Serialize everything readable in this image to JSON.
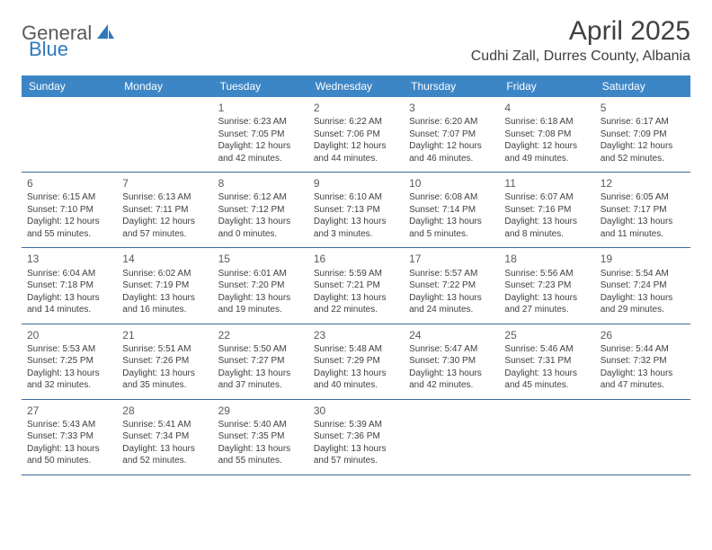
{
  "brand": {
    "part1": "General",
    "part2": "Blue"
  },
  "title": "April 2025",
  "location": "Cudhi Zall, Durres County, Albania",
  "colors": {
    "header_bg": "#3d86c6",
    "header_text": "#ffffff",
    "row_border": "#3d6a97",
    "body_text": "#404040",
    "brand_gray": "#5a5a5a",
    "brand_blue": "#2f78bd"
  },
  "day_headers": [
    "Sunday",
    "Monday",
    "Tuesday",
    "Wednesday",
    "Thursday",
    "Friday",
    "Saturday"
  ],
  "weeks": [
    [
      null,
      null,
      {
        "n": "1",
        "sr": "Sunrise: 6:23 AM",
        "ss": "Sunset: 7:05 PM",
        "d1": "Daylight: 12 hours",
        "d2": "and 42 minutes."
      },
      {
        "n": "2",
        "sr": "Sunrise: 6:22 AM",
        "ss": "Sunset: 7:06 PM",
        "d1": "Daylight: 12 hours",
        "d2": "and 44 minutes."
      },
      {
        "n": "3",
        "sr": "Sunrise: 6:20 AM",
        "ss": "Sunset: 7:07 PM",
        "d1": "Daylight: 12 hours",
        "d2": "and 46 minutes."
      },
      {
        "n": "4",
        "sr": "Sunrise: 6:18 AM",
        "ss": "Sunset: 7:08 PM",
        "d1": "Daylight: 12 hours",
        "d2": "and 49 minutes."
      },
      {
        "n": "5",
        "sr": "Sunrise: 6:17 AM",
        "ss": "Sunset: 7:09 PM",
        "d1": "Daylight: 12 hours",
        "d2": "and 52 minutes."
      }
    ],
    [
      {
        "n": "6",
        "sr": "Sunrise: 6:15 AM",
        "ss": "Sunset: 7:10 PM",
        "d1": "Daylight: 12 hours",
        "d2": "and 55 minutes."
      },
      {
        "n": "7",
        "sr": "Sunrise: 6:13 AM",
        "ss": "Sunset: 7:11 PM",
        "d1": "Daylight: 12 hours",
        "d2": "and 57 minutes."
      },
      {
        "n": "8",
        "sr": "Sunrise: 6:12 AM",
        "ss": "Sunset: 7:12 PM",
        "d1": "Daylight: 13 hours",
        "d2": "and 0 minutes."
      },
      {
        "n": "9",
        "sr": "Sunrise: 6:10 AM",
        "ss": "Sunset: 7:13 PM",
        "d1": "Daylight: 13 hours",
        "d2": "and 3 minutes."
      },
      {
        "n": "10",
        "sr": "Sunrise: 6:08 AM",
        "ss": "Sunset: 7:14 PM",
        "d1": "Daylight: 13 hours",
        "d2": "and 5 minutes."
      },
      {
        "n": "11",
        "sr": "Sunrise: 6:07 AM",
        "ss": "Sunset: 7:16 PM",
        "d1": "Daylight: 13 hours",
        "d2": "and 8 minutes."
      },
      {
        "n": "12",
        "sr": "Sunrise: 6:05 AM",
        "ss": "Sunset: 7:17 PM",
        "d1": "Daylight: 13 hours",
        "d2": "and 11 minutes."
      }
    ],
    [
      {
        "n": "13",
        "sr": "Sunrise: 6:04 AM",
        "ss": "Sunset: 7:18 PM",
        "d1": "Daylight: 13 hours",
        "d2": "and 14 minutes."
      },
      {
        "n": "14",
        "sr": "Sunrise: 6:02 AM",
        "ss": "Sunset: 7:19 PM",
        "d1": "Daylight: 13 hours",
        "d2": "and 16 minutes."
      },
      {
        "n": "15",
        "sr": "Sunrise: 6:01 AM",
        "ss": "Sunset: 7:20 PM",
        "d1": "Daylight: 13 hours",
        "d2": "and 19 minutes."
      },
      {
        "n": "16",
        "sr": "Sunrise: 5:59 AM",
        "ss": "Sunset: 7:21 PM",
        "d1": "Daylight: 13 hours",
        "d2": "and 22 minutes."
      },
      {
        "n": "17",
        "sr": "Sunrise: 5:57 AM",
        "ss": "Sunset: 7:22 PM",
        "d1": "Daylight: 13 hours",
        "d2": "and 24 minutes."
      },
      {
        "n": "18",
        "sr": "Sunrise: 5:56 AM",
        "ss": "Sunset: 7:23 PM",
        "d1": "Daylight: 13 hours",
        "d2": "and 27 minutes."
      },
      {
        "n": "19",
        "sr": "Sunrise: 5:54 AM",
        "ss": "Sunset: 7:24 PM",
        "d1": "Daylight: 13 hours",
        "d2": "and 29 minutes."
      }
    ],
    [
      {
        "n": "20",
        "sr": "Sunrise: 5:53 AM",
        "ss": "Sunset: 7:25 PM",
        "d1": "Daylight: 13 hours",
        "d2": "and 32 minutes."
      },
      {
        "n": "21",
        "sr": "Sunrise: 5:51 AM",
        "ss": "Sunset: 7:26 PM",
        "d1": "Daylight: 13 hours",
        "d2": "and 35 minutes."
      },
      {
        "n": "22",
        "sr": "Sunrise: 5:50 AM",
        "ss": "Sunset: 7:27 PM",
        "d1": "Daylight: 13 hours",
        "d2": "and 37 minutes."
      },
      {
        "n": "23",
        "sr": "Sunrise: 5:48 AM",
        "ss": "Sunset: 7:29 PM",
        "d1": "Daylight: 13 hours",
        "d2": "and 40 minutes."
      },
      {
        "n": "24",
        "sr": "Sunrise: 5:47 AM",
        "ss": "Sunset: 7:30 PM",
        "d1": "Daylight: 13 hours",
        "d2": "and 42 minutes."
      },
      {
        "n": "25",
        "sr": "Sunrise: 5:46 AM",
        "ss": "Sunset: 7:31 PM",
        "d1": "Daylight: 13 hours",
        "d2": "and 45 minutes."
      },
      {
        "n": "26",
        "sr": "Sunrise: 5:44 AM",
        "ss": "Sunset: 7:32 PM",
        "d1": "Daylight: 13 hours",
        "d2": "and 47 minutes."
      }
    ],
    [
      {
        "n": "27",
        "sr": "Sunrise: 5:43 AM",
        "ss": "Sunset: 7:33 PM",
        "d1": "Daylight: 13 hours",
        "d2": "and 50 minutes."
      },
      {
        "n": "28",
        "sr": "Sunrise: 5:41 AM",
        "ss": "Sunset: 7:34 PM",
        "d1": "Daylight: 13 hours",
        "d2": "and 52 minutes."
      },
      {
        "n": "29",
        "sr": "Sunrise: 5:40 AM",
        "ss": "Sunset: 7:35 PM",
        "d1": "Daylight: 13 hours",
        "d2": "and 55 minutes."
      },
      {
        "n": "30",
        "sr": "Sunrise: 5:39 AM",
        "ss": "Sunset: 7:36 PM",
        "d1": "Daylight: 13 hours",
        "d2": "and 57 minutes."
      },
      null,
      null,
      null
    ]
  ]
}
